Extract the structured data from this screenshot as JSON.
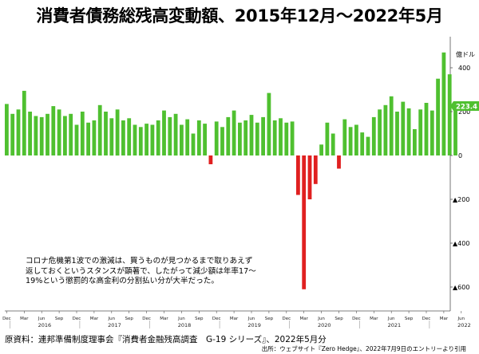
{
  "title": "消費者債務総残高変動額、2015年12月～2022年5月",
  "annotation": {
    "line1": "コロナ危機第1波での激減は、買うものが見つかるまで取りあえず",
    "line2": "返しておくというスタンスが顕著で、したがって減少額は年率17～",
    "line3": "19%という懲罰的な高金利の分割払い分が大半だった。"
  },
  "source": "原資料：連邦準備制度理事会『消費者金融残高調査　G-19 シリーズ』、2022年5月分",
  "credit": "出所：ウェブサイト『Zero Hedge』、2022年7月9日のエントリーより引用",
  "chart_data": {
    "type": "bar",
    "ylabel": "億ドル",
    "ylim": [
      -620,
      520
    ],
    "yticks": [
      {
        "value": 400,
        "label": "400"
      },
      {
        "value": 200,
        "label": "200"
      },
      {
        "value": 0,
        "label": "0"
      },
      {
        "value": -200,
        "label": "▲200"
      },
      {
        "value": -400,
        "label": "▲400"
      },
      {
        "value": -600,
        "label": "▲600"
      }
    ],
    "last_value_label": "223.4",
    "positive_color": "#4fc030",
    "negative_color": "#e02020",
    "x_month_labels": [
      "Dec",
      "Mar",
      "Jun",
      "Sep",
      "Dec",
      "Mar",
      "Jun",
      "Sep",
      "Dec",
      "Mar",
      "Jun",
      "Sep",
      "Dec",
      "Mar",
      "Jun",
      "Sep",
      "Dec",
      "Mar",
      "Jun",
      "Sep",
      "Dec",
      "Mar",
      "Jun",
      "Sep",
      "Dec",
      "Mar",
      "Jun"
    ],
    "x_year_labels": [
      "2016",
      "2017",
      "2018",
      "2019",
      "2020",
      "2021",
      "2022"
    ],
    "categories": [
      "2015-12",
      "2016-01",
      "2016-02",
      "2016-03",
      "2016-04",
      "2016-05",
      "2016-06",
      "2016-07",
      "2016-08",
      "2016-09",
      "2016-10",
      "2016-11",
      "2016-12",
      "2017-01",
      "2017-02",
      "2017-03",
      "2017-04",
      "2017-05",
      "2017-06",
      "2017-07",
      "2017-08",
      "2017-09",
      "2017-10",
      "2017-11",
      "2017-12",
      "2018-01",
      "2018-02",
      "2018-03",
      "2018-04",
      "2018-05",
      "2018-06",
      "2018-07",
      "2018-08",
      "2018-09",
      "2018-10",
      "2018-11",
      "2018-12",
      "2019-01",
      "2019-02",
      "2019-03",
      "2019-04",
      "2019-05",
      "2019-06",
      "2019-07",
      "2019-08",
      "2019-09",
      "2019-10",
      "2019-11",
      "2019-12",
      "2020-01",
      "2020-02",
      "2020-03",
      "2020-04",
      "2020-05",
      "2020-06",
      "2020-07",
      "2020-08",
      "2020-09",
      "2020-10",
      "2020-11",
      "2020-12",
      "2021-01",
      "2021-02",
      "2021-03",
      "2021-04",
      "2021-05",
      "2021-06",
      "2021-07",
      "2021-08",
      "2021-09",
      "2021-10",
      "2021-11",
      "2021-12",
      "2022-01",
      "2022-02",
      "2022-03",
      "2022-04",
      "2022-05"
    ],
    "values": [
      235,
      190,
      210,
      295,
      200,
      180,
      175,
      190,
      225,
      210,
      180,
      190,
      140,
      200,
      150,
      160,
      230,
      200,
      170,
      210,
      160,
      170,
      140,
      130,
      145,
      140,
      160,
      205,
      175,
      190,
      140,
      165,
      100,
      160,
      145,
      -40,
      155,
      130,
      175,
      205,
      150,
      160,
      185,
      150,
      175,
      285,
      160,
      170,
      150,
      155,
      -180,
      -610,
      -200,
      -130,
      50,
      150,
      100,
      -60,
      165,
      130,
      140,
      105,
      85,
      175,
      210,
      230,
      270,
      200,
      245,
      215,
      120,
      210,
      240,
      205,
      350,
      470,
      370,
      223
    ]
  }
}
